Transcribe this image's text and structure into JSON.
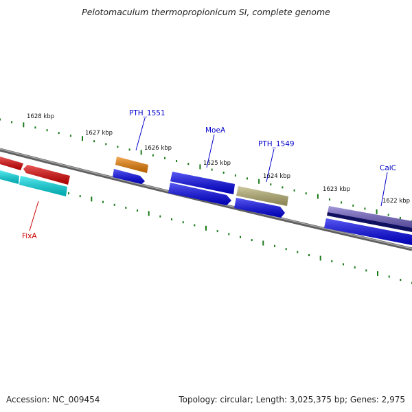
{
  "title": "Pelotomaculum thermopropionicum SI, complete genome",
  "footer": {
    "accession": "Accession: NC_009454",
    "summary": "Topology: circular; Length: 3,025,375 bp; Genes: 2,975"
  },
  "ticks": [
    "1628 kbp",
    "1627 kbp",
    "1626 kbp",
    "1625 kbp",
    "1624 kbp",
    "1623 kbp",
    "1622 kbp"
  ],
  "gene_labels": [
    {
      "name": "FixA",
      "color": "#cc0000"
    },
    {
      "name": "PTH_1551",
      "color": "#0000cc"
    },
    {
      "name": "MoeA",
      "color": "#0000cc"
    },
    {
      "name": "PTH_1549",
      "color": "#0000cc"
    },
    {
      "name": "CaiC",
      "color": "#0000cc"
    }
  ],
  "colors": {
    "backbone": "#808080",
    "tick": "#1a7a1a",
    "red_gene": "#e00000",
    "cyan_gene": "#00e0e8",
    "orange_gene": "#f08000",
    "blue_gene": "#0000ee",
    "olive_gene": "#b8b070",
    "purple_gene": "#7060c8",
    "navy_gene": "#101060"
  }
}
